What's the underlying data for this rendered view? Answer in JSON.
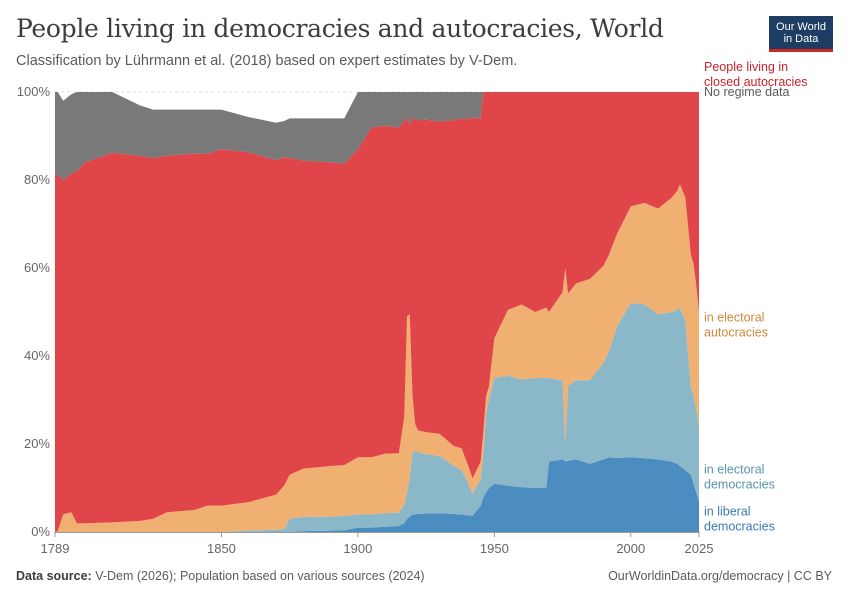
{
  "title": "People living in democracies and autocracies, World",
  "subtitle": "Classification by Lührmann et al. (2018) based on expert estimates by V-Dem.",
  "logo": {
    "line1": "Our World",
    "line2": "in Data"
  },
  "footer": {
    "source_label": "Data source:",
    "source_text": " V-Dem (2026); Population based on various sources (2024)",
    "right": "OurWorldinData.org/democracy | CC BY"
  },
  "chart_data": {
    "type": "area",
    "stacked": true,
    "x_label": "",
    "y_label": "",
    "x_range": [
      1789,
      2025
    ],
    "y_range": [
      0,
      100
    ],
    "y_ticks": [
      0,
      20,
      40,
      60,
      80,
      100
    ],
    "y_tick_labels": [
      "0%",
      "20%",
      "40%",
      "60%",
      "80%",
      "100%"
    ],
    "x_ticks": [
      1789,
      1850,
      1900,
      1950,
      2000,
      2025
    ],
    "x_tick_labels": [
      "1789",
      "1850",
      "1900",
      "1950",
      "2000",
      "2025"
    ],
    "grid": true,
    "legend_position": "right",
    "x": [
      1789,
      1790,
      1792,
      1795,
      1797,
      1800,
      1810,
      1820,
      1825,
      1830,
      1840,
      1845,
      1850,
      1860,
      1870,
      1873,
      1875,
      1880,
      1890,
      1895,
      1900,
      1905,
      1910,
      1915,
      1917,
      1918,
      1919,
      1920,
      1921,
      1922,
      1925,
      1930,
      1935,
      1938,
      1940,
      1942,
      1945,
      1946,
      1947,
      1948,
      1950,
      1955,
      1960,
      1965,
      1969,
      1970,
      1975,
      1976,
      1977,
      1980,
      1985,
      1990,
      1992,
      1995,
      2000,
      2005,
      2010,
      2015,
      2017,
      2018,
      2020,
      2022,
      2023,
      2024,
      2025
    ],
    "series": [
      {
        "name": "in liberal democracies",
        "color": "#4c8dc1",
        "values": [
          0,
          0,
          0,
          0,
          0,
          0,
          0,
          0,
          0,
          0,
          0,
          0,
          0,
          0,
          0,
          0,
          0,
          0.2,
          0.3,
          0.4,
          1,
          1,
          1.2,
          1.4,
          2.0,
          3.0,
          3.5,
          4,
          4,
          4.1,
          4.2,
          4.3,
          4.1,
          4,
          3.8,
          3.7,
          6,
          8,
          9,
          10,
          11,
          10.5,
          10.2,
          10,
          10,
          16,
          16.5,
          16,
          16.2,
          16.5,
          15.5,
          16.5,
          17,
          16.8,
          17,
          16.8,
          16.5,
          16,
          15.5,
          15,
          14,
          13,
          11,
          9,
          7
        ]
      },
      {
        "name": "in electoral democracies",
        "color": "#8ab8c9",
        "values": [
          0,
          0,
          0,
          0,
          0,
          0,
          0,
          0,
          0,
          0,
          0,
          0,
          0,
          0.3,
          0.5,
          0.6,
          3,
          3.2,
          3.2,
          3.3,
          3,
          3,
          3.1,
          3,
          4.2,
          6,
          9,
          14,
          14.5,
          14,
          13.5,
          13,
          11,
          10,
          8,
          5,
          6,
          10,
          18,
          20,
          24,
          25,
          24.5,
          25,
          25,
          19,
          18,
          4,
          17,
          18,
          19,
          22,
          24,
          30,
          35,
          35,
          33,
          34,
          35,
          36,
          34,
          20,
          20,
          19,
          17
        ]
      },
      {
        "name": "in electoral autocracies",
        "color": "#f0b072",
        "values": [
          0,
          0.2,
          4,
          4.5,
          2,
          2,
          2.2,
          2.5,
          3,
          4.5,
          5,
          6,
          6,
          6.5,
          8,
          10,
          10,
          11,
          11.5,
          11.5,
          13,
          13,
          13.5,
          13.5,
          20,
          40,
          37,
          13,
          6,
          5,
          5,
          5,
          4.5,
          5,
          4,
          3.5,
          4,
          5,
          4,
          3,
          9,
          15,
          17,
          15,
          16,
          15,
          20,
          40,
          21,
          22,
          23,
          22,
          22,
          21,
          22,
          23,
          24,
          26,
          27,
          28,
          28,
          30,
          30,
          28,
          26
        ]
      },
      {
        "name": "People living in closed autocracies",
        "color": "#e04549",
        "values": [
          81,
          81,
          76,
          77,
          80,
          82,
          84,
          83,
          82,
          81,
          81,
          80,
          81,
          79.5,
          76,
          74.5,
          72,
          70,
          69,
          68.5,
          70,
          75,
          74.5,
          74,
          67.5,
          45,
          43,
          63,
          69.5,
          70.5,
          71,
          71,
          74,
          75,
          78,
          82,
          78,
          77,
          69,
          67,
          56,
          49.5,
          48.3,
          50,
          49,
          50,
          45.5,
          40,
          45.8,
          43.5,
          42.5,
          39.5,
          37,
          32.2,
          26,
          25.2,
          26.5,
          24,
          22.5,
          21,
          24,
          37,
          39,
          44,
          50
        ]
      },
      {
        "name": "No regime data",
        "color": "#797979",
        "values": [
          19,
          18.8,
          18,
          18,
          18,
          16,
          13.8,
          11.5,
          11,
          10.5,
          10,
          10,
          9,
          8,
          8.5,
          8.3,
          9,
          9.6,
          10,
          10.3,
          13,
          8,
          7.7,
          8.1,
          6.3,
          6,
          7.5,
          6,
          6,
          6.4,
          6.3,
          6.7,
          6.4,
          6,
          6.2,
          5.8,
          6,
          0,
          0,
          0,
          0,
          0,
          0,
          0,
          0,
          0,
          0,
          0,
          0,
          0,
          0,
          0,
          0,
          0,
          0,
          0,
          0,
          0,
          0,
          0,
          0,
          0,
          0,
          0,
          0
        ]
      }
    ],
    "legend_labels": [
      {
        "series": "No regime data",
        "lines": [
          "No regime data"
        ]
      },
      {
        "series": "People living in closed autocracies",
        "lines": [
          "People living in",
          "closed autocracies"
        ]
      },
      {
        "series": "in electoral autocracies",
        "lines": [
          "in electoral",
          "autocracies"
        ]
      },
      {
        "series": "in electoral democracies",
        "lines": [
          "in electoral",
          "democracies"
        ]
      },
      {
        "series": "in liberal democracies",
        "lines": [
          "in liberal",
          "democracies"
        ]
      }
    ],
    "legend_colors": {
      "No regime data": "#5b5b5b",
      "People living in closed autocracies": "#c8232a",
      "in electoral autocracies": "#cd8a3c",
      "in electoral democracies": "#5a94ac",
      "in liberal democracies": "#3a7ab8"
    }
  }
}
